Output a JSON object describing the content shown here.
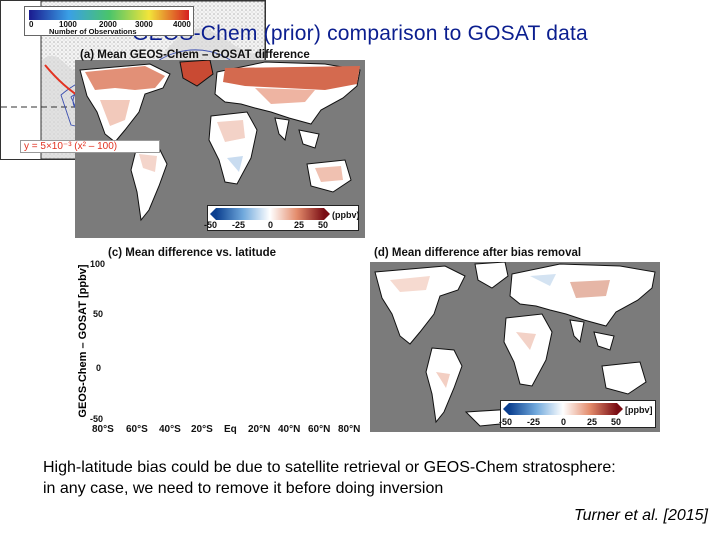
{
  "title": "GEOS-Chem (prior) comparison to GOSAT data",
  "panels": {
    "a": {
      "label": "(a) Mean GEOS-Chem – GOSAT difference",
      "colorbar": {
        "ticks": [
          "-50",
          "-25",
          "0",
          "25",
          "50"
        ],
        "unit": "(ppbv)"
      }
    },
    "c": {
      "label": "(c) Mean difference vs. latitude",
      "ylabel": "GEOS-Chem – GOSAT [ppbv]",
      "yticks": [
        "100",
        "50",
        "0",
        "-50"
      ],
      "xticks": [
        "80°S",
        "60°S",
        "40°S",
        "20°S",
        "Eq",
        "20°N",
        "40°N",
        "60°N",
        "80°N"
      ],
      "obs_colorbar": {
        "ticks": [
          "0",
          "1000",
          "2000",
          "3000",
          "4000"
        ],
        "label": "Number of Observations"
      },
      "fit_equation": "y = 5×10⁻³ (x² – 100)"
    },
    "d": {
      "label": "(d) Mean difference after bias removal",
      "colorbar": {
        "ticks": [
          "-50",
          "-25",
          "0",
          "25",
          "50"
        ],
        "unit": "[ppbv]"
      }
    }
  },
  "caption": {
    "line1": "High-latitude bias could be due to satellite retrieval or GEOS-Chem stratosphere:",
    "line2": "in any case, we need to remove it before doing inversion"
  },
  "citation": "Turner et al. [2015]",
  "colors": {
    "title": "#0b1e8f",
    "map_background": "#7b7b7b",
    "positive": "#c8472f",
    "negative": "#2f6fc0",
    "fit_line": "#e23322",
    "contours": "#3b4fb0"
  }
}
